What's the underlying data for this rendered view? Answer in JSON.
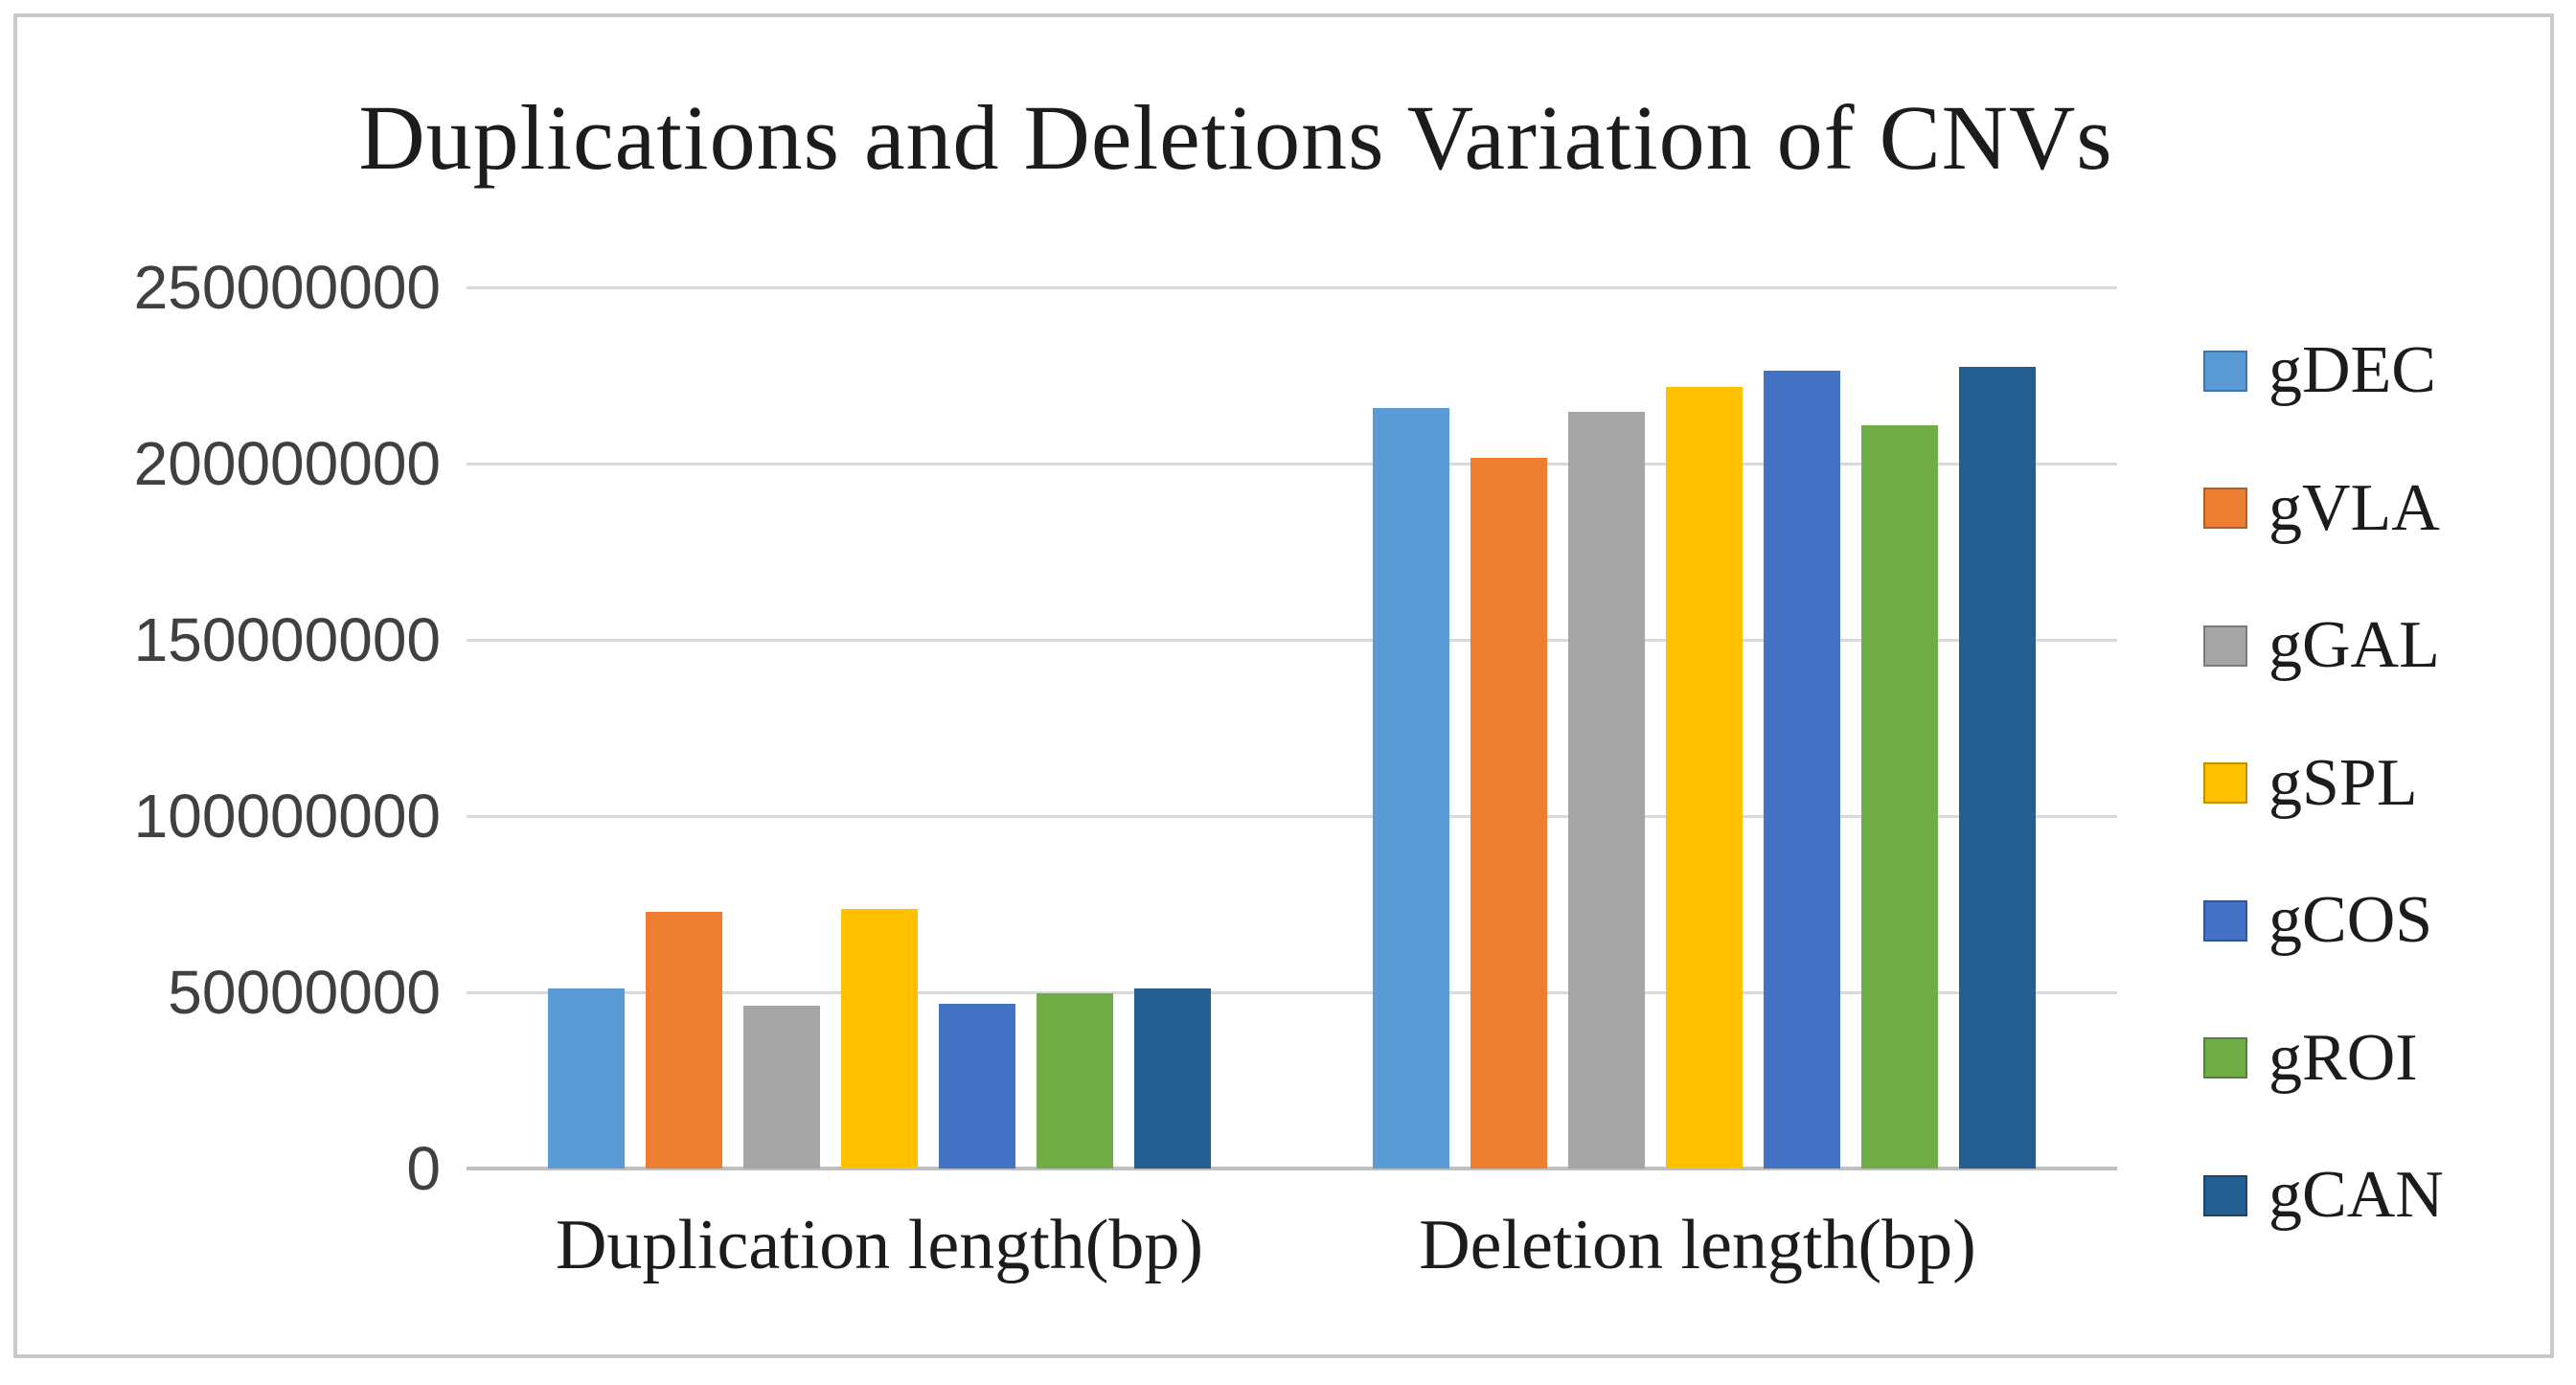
{
  "figure": {
    "background": "#ffffff",
    "border_color": "#c9c9c9"
  },
  "chart_data": {
    "type": "bar",
    "title": "Duplications and Deletions Variation of CNVs",
    "categories": [
      "Duplication length(bp)",
      "Deletion length(bp)"
    ],
    "series": [
      {
        "name": "gDEC",
        "color": "#5B9BD5",
        "values": [
          51000000,
          215800000
        ]
      },
      {
        "name": "gVLA",
        "color": "#ED7D31",
        "values": [
          72800000,
          201500000
        ]
      },
      {
        "name": "gGAL",
        "color": "#A5A5A5",
        "values": [
          46300000,
          214800000
        ]
      },
      {
        "name": "gSPL",
        "color": "#FFC000",
        "values": [
          73700000,
          221800000
        ]
      },
      {
        "name": "gCOS",
        "color": "#4472C4",
        "values": [
          46800000,
          226300000
        ]
      },
      {
        "name": "gROI",
        "color": "#70AD47",
        "values": [
          49600000,
          210800000
        ]
      },
      {
        "name": "gCAN",
        "color": "#255E91",
        "values": [
          51200000,
          227400000
        ]
      }
    ],
    "y_axis": {
      "min": 0,
      "max": 250000000,
      "step": 50000000,
      "tick_labels": [
        "0",
        "50000000",
        "100000000",
        "150000000",
        "200000000",
        "250000000"
      ]
    },
    "xlabel": "",
    "ylabel": "",
    "grid": true,
    "gridline_color": "#d9d9d9",
    "axis_line_color": "#bfbfbf",
    "legend_position": "right"
  }
}
